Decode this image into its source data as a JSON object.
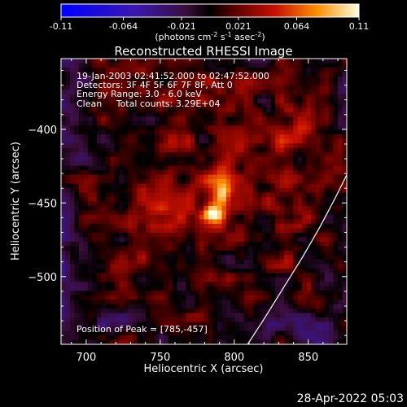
{
  "chart_data": {
    "type": "heatmap",
    "title": "Reconstructed RHESSI Image",
    "xlabel": "Heliocentric X (arcsec)",
    "ylabel": "Heliocentric Y (arcsec)",
    "xlim": [
      683,
      876
    ],
    "ylim": [
      -546,
      -352
    ],
    "x_ticks": [
      700,
      750,
      800,
      850
    ],
    "y_ticks": [
      -400,
      -450,
      -500
    ],
    "colorbar": {
      "ticks": [
        -0.11,
        -0.064,
        -0.021,
        0.021,
        0.064,
        0.11
      ],
      "tick_labels": [
        "-0.11",
        "-0.064",
        "-0.021",
        "0.021",
        "0.064",
        "0.11"
      ],
      "range": [
        -0.11,
        0.11
      ],
      "label_prefix": "(photons cm",
      "label_sup1": "-2",
      "label_mid1": " s",
      "label_sup2": "-1",
      "label_mid2": " asec",
      "label_sup3": "-2",
      "label_suffix": ")"
    },
    "annotations": {
      "time_range": "19-Jan-2003 02:41:52.000 to 02:47:52.000",
      "detectors": "Detectors: 3F 4F 5F 6F 7F 8F, Att 0",
      "energy": "Energy Range: 3.0 - 6.0 keV",
      "clean": "Clean     Total counts: 3.29E+04",
      "peak": "Position of Peak = [785,-457]"
    },
    "peak": {
      "x": 785,
      "y": -457,
      "value": 0.11
    },
    "limb_curve": [
      [
        809,
        -546
      ],
      [
        820,
        -529
      ],
      [
        833,
        -508
      ],
      [
        846,
        -487
      ],
      [
        858,
        -466
      ],
      [
        868,
        -447
      ],
      [
        876,
        -431
      ]
    ],
    "footer_date": "28-Apr-2022 05:03"
  }
}
